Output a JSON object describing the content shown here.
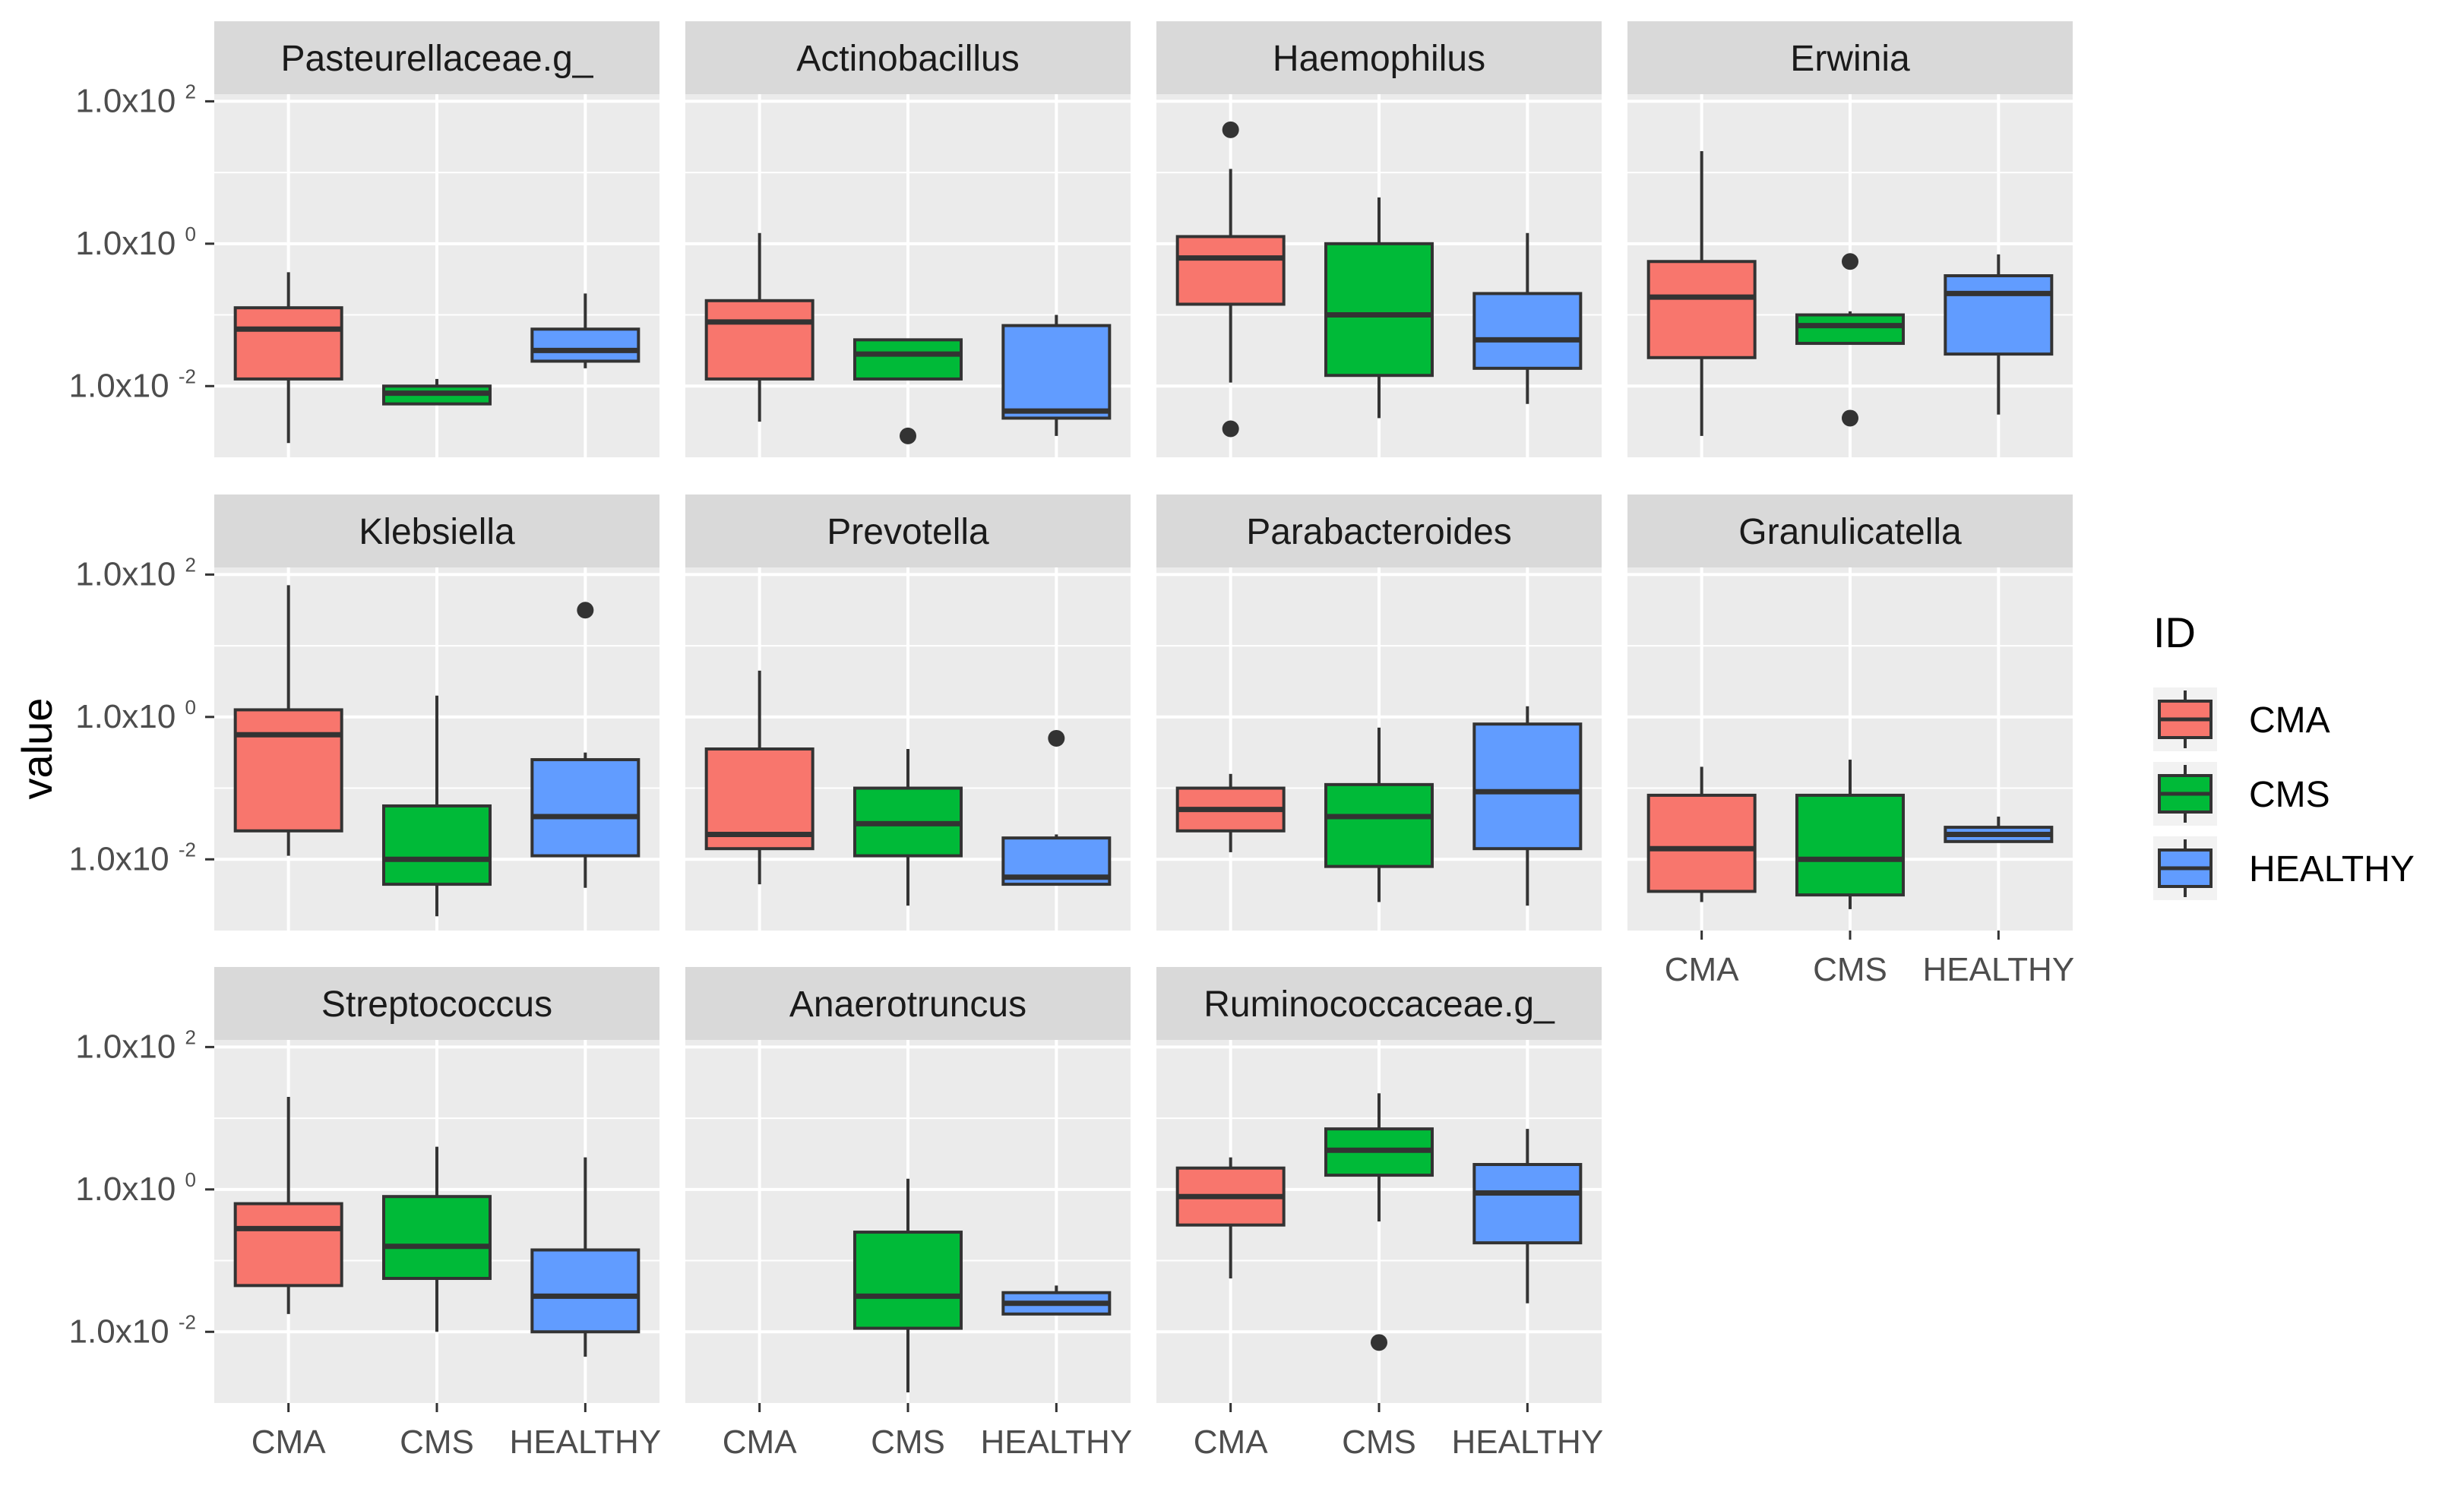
{
  "chart_data": {
    "type": "boxplot",
    "ylabel": "value",
    "yscale": "log10",
    "ylim_log10": [
      -3.0,
      2.1
    ],
    "yticks": [
      {
        "log10": 2,
        "label": "1.0x10 2"
      },
      {
        "log10": 0,
        "label": "1.0x10 0"
      },
      {
        "log10": -2,
        "label": "1.0x10 -2"
      }
    ],
    "groups": [
      "CMA",
      "CMS",
      "HEALTHY"
    ],
    "xtick_labels": [
      "CMA",
      "CMS",
      "HEALTHY"
    ],
    "legend": {
      "title": "ID",
      "entries": [
        {
          "label": "CMA",
          "color": "#F8766D"
        },
        {
          "label": "CMS",
          "color": "#00BA38"
        },
        {
          "label": "HEALTHY",
          "color": "#619CFF"
        }
      ]
    },
    "colors": {
      "CMA": "#F8766D",
      "CMS": "#00BA38",
      "HEALTHY": "#619CFF",
      "panel_bg": "#EBEBEB",
      "strip_bg": "#D9D9D9",
      "grid": "#FFFFFF"
    },
    "panels": [
      {
        "title": "Pasteurellaceae.g_",
        "boxes": {
          "CMA": {
            "whislo": -2.8,
            "q1": -1.9,
            "med": -1.2,
            "q3": -0.9,
            "whishi": -0.4,
            "outliers": []
          },
          "CMS": {
            "whislo": -2.25,
            "q1": -2.25,
            "med": -2.1,
            "q3": -2.0,
            "whishi": -1.9,
            "outliers": []
          },
          "HEALTHY": {
            "whislo": -1.75,
            "q1": -1.65,
            "med": -1.5,
            "q3": -1.2,
            "whishi": -0.7,
            "outliers": []
          }
        }
      },
      {
        "title": "Actinobacillus",
        "boxes": {
          "CMA": {
            "whislo": -2.5,
            "q1": -1.9,
            "med": -1.1,
            "q3": -0.8,
            "whishi": 0.15,
            "outliers": []
          },
          "CMS": {
            "whislo": -1.9,
            "q1": -1.9,
            "med": -1.55,
            "q3": -1.35,
            "whishi": -1.35,
            "outliers": [
              -2.7
            ]
          },
          "HEALTHY": {
            "whislo": -2.7,
            "q1": -2.45,
            "med": -2.35,
            "q3": -1.15,
            "whishi": -1.0,
            "outliers": []
          }
        }
      },
      {
        "title": "Haemophilus",
        "boxes": {
          "CMA": {
            "whislo": -1.95,
            "q1": -0.85,
            "med": -0.2,
            "q3": 0.1,
            "whishi": 1.05,
            "outliers": [
              1.6,
              -2.6
            ]
          },
          "CMS": {
            "whislo": -2.45,
            "q1": -1.85,
            "med": -1.0,
            "q3": 0.0,
            "whishi": 0.65,
            "outliers": []
          },
          "HEALTHY": {
            "whislo": -2.25,
            "q1": -1.75,
            "med": -1.35,
            "q3": -0.7,
            "whishi": 0.15,
            "outliers": []
          }
        }
      },
      {
        "title": "Erwinia",
        "boxes": {
          "CMA": {
            "whislo": -2.7,
            "q1": -1.6,
            "med": -0.75,
            "q3": -0.25,
            "whishi": 1.3,
            "outliers": []
          },
          "CMS": {
            "whislo": -1.4,
            "q1": -1.4,
            "med": -1.15,
            "q3": -1.0,
            "whishi": -0.95,
            "outliers": [
              -0.25,
              -2.45
            ]
          },
          "HEALTHY": {
            "whislo": -2.4,
            "q1": -1.55,
            "med": -0.7,
            "q3": -0.45,
            "whishi": -0.15,
            "outliers": []
          }
        }
      },
      {
        "title": "Klebsiella",
        "boxes": {
          "CMA": {
            "whislo": -1.95,
            "q1": -1.6,
            "med": -0.25,
            "q3": 0.1,
            "whishi": 1.85,
            "outliers": []
          },
          "CMS": {
            "whislo": -2.8,
            "q1": -2.35,
            "med": -2.0,
            "q3": -1.25,
            "whishi": 0.3,
            "outliers": []
          },
          "HEALTHY": {
            "whislo": -2.4,
            "q1": -1.95,
            "med": -1.4,
            "q3": -0.6,
            "whishi": -0.5,
            "outliers": [
              1.5
            ]
          }
        }
      },
      {
        "title": "Prevotella",
        "boxes": {
          "CMA": {
            "whislo": -2.35,
            "q1": -1.85,
            "med": -1.65,
            "q3": -0.45,
            "whishi": 0.65,
            "outliers": []
          },
          "CMS": {
            "whislo": -2.65,
            "q1": -1.95,
            "med": -1.5,
            "q3": -1.0,
            "whishi": -0.45,
            "outliers": []
          },
          "HEALTHY": {
            "whislo": -2.35,
            "q1": -2.35,
            "med": -2.25,
            "q3": -1.7,
            "whishi": -1.65,
            "outliers": [
              -0.3
            ]
          }
        }
      },
      {
        "title": "Parabacteroides",
        "boxes": {
          "CMA": {
            "whislo": -1.9,
            "q1": -1.6,
            "med": -1.3,
            "q3": -1.0,
            "whishi": -0.8,
            "outliers": []
          },
          "CMS": {
            "whislo": -2.6,
            "q1": -2.1,
            "med": -1.4,
            "q3": -0.95,
            "whishi": -0.15,
            "outliers": []
          },
          "HEALTHY": {
            "whislo": -2.65,
            "q1": -1.85,
            "med": -1.05,
            "q3": -0.1,
            "whishi": 0.15,
            "outliers": []
          }
        }
      },
      {
        "title": "Granulicatella",
        "boxes": {
          "CMA": {
            "whislo": -2.6,
            "q1": -2.45,
            "med": -1.85,
            "q3": -1.1,
            "whishi": -0.7,
            "outliers": []
          },
          "CMS": {
            "whislo": -2.7,
            "q1": -2.5,
            "med": -2.0,
            "q3": -1.1,
            "whishi": -0.6,
            "outliers": []
          },
          "HEALTHY": {
            "whislo": -1.75,
            "q1": -1.75,
            "med": -1.65,
            "q3": -1.55,
            "whishi": -1.4,
            "outliers": []
          }
        }
      },
      {
        "title": "Streptococcus",
        "boxes": {
          "CMA": {
            "whislo": -1.75,
            "q1": -1.35,
            "med": -0.55,
            "q3": -0.2,
            "whishi": 1.3,
            "outliers": []
          },
          "CMS": {
            "whislo": -2.0,
            "q1": -1.25,
            "med": -0.8,
            "q3": -0.1,
            "whishi": 0.6,
            "outliers": []
          },
          "HEALTHY": {
            "whislo": -2.35,
            "q1": -2.0,
            "med": -1.5,
            "q3": -0.85,
            "whishi": 0.45,
            "outliers": []
          }
        }
      },
      {
        "title": "Anaerotruncus",
        "boxes": {
          "CMS": {
            "whislo": -2.85,
            "q1": -1.95,
            "med": -1.5,
            "q3": -0.6,
            "whishi": 0.15,
            "outliers": []
          },
          "HEALTHY": {
            "whislo": -1.75,
            "q1": -1.75,
            "med": -1.6,
            "q3": -1.45,
            "whishi": -1.35,
            "outliers": []
          }
        }
      },
      {
        "title": "Ruminococcaceae.g_",
        "boxes": {
          "CMA": {
            "whislo": -1.25,
            "q1": -0.5,
            "med": -0.1,
            "q3": 0.3,
            "whishi": 0.45,
            "outliers": []
          },
          "CMS": {
            "whislo": -0.45,
            "q1": 0.2,
            "med": 0.55,
            "q3": 0.85,
            "whishi": 1.35,
            "outliers": [
              -2.15
            ]
          },
          "HEALTHY": {
            "whislo": -1.6,
            "q1": -0.75,
            "med": -0.05,
            "q3": 0.35,
            "whishi": 0.85,
            "outliers": []
          }
        }
      }
    ]
  }
}
